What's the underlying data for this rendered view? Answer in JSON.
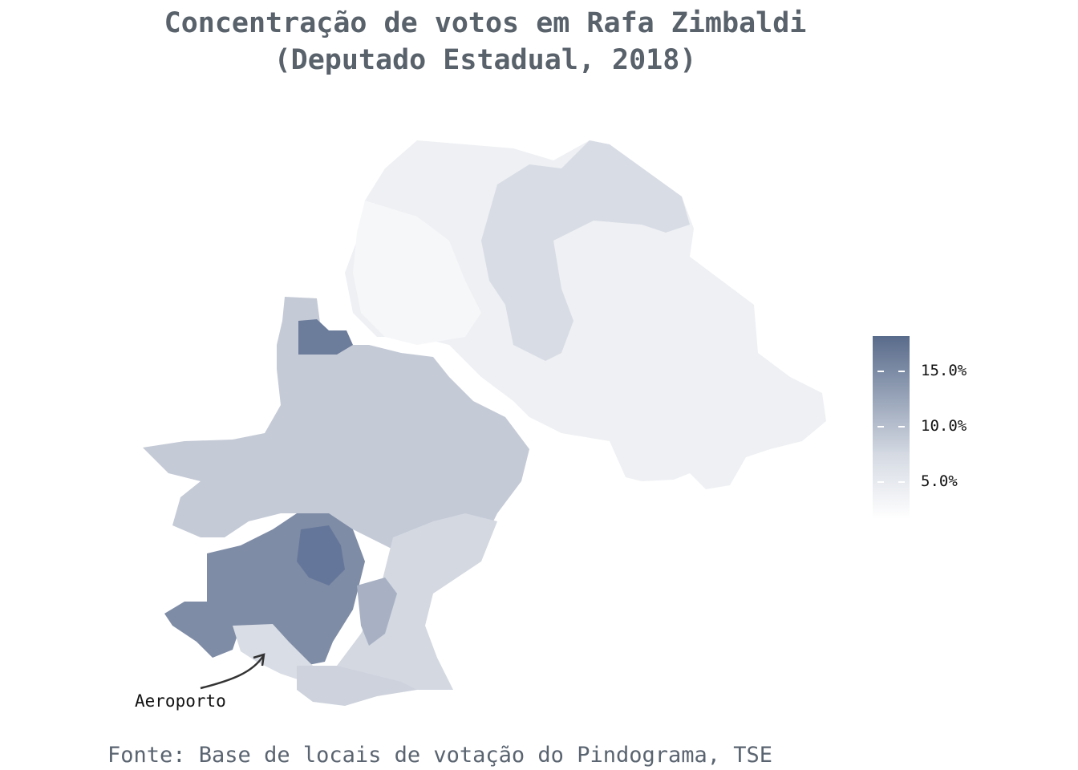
{
  "title": {
    "line1": "Concentração de votos em Rafa Zimbaldi",
    "line2": "(Deputado Estadual, 2018)"
  },
  "legend": {
    "labels": [
      "15.0%",
      "10.0%",
      "5.0%"
    ],
    "values": [
      15.0,
      10.0,
      5.0
    ],
    "range": [
      2,
      18
    ],
    "color_low": "#ffffff",
    "color_high": "#596b8b"
  },
  "annotation": "Aeroporto",
  "source": "Fonte: Base de locais de votação do Pindograma, TSE",
  "colors": {
    "title": "#59626b",
    "source": "#5a6470",
    "region_light": "#eef0f3",
    "region_mid": "#c7cdd9",
    "region_dark": "#7e8ca5"
  }
}
